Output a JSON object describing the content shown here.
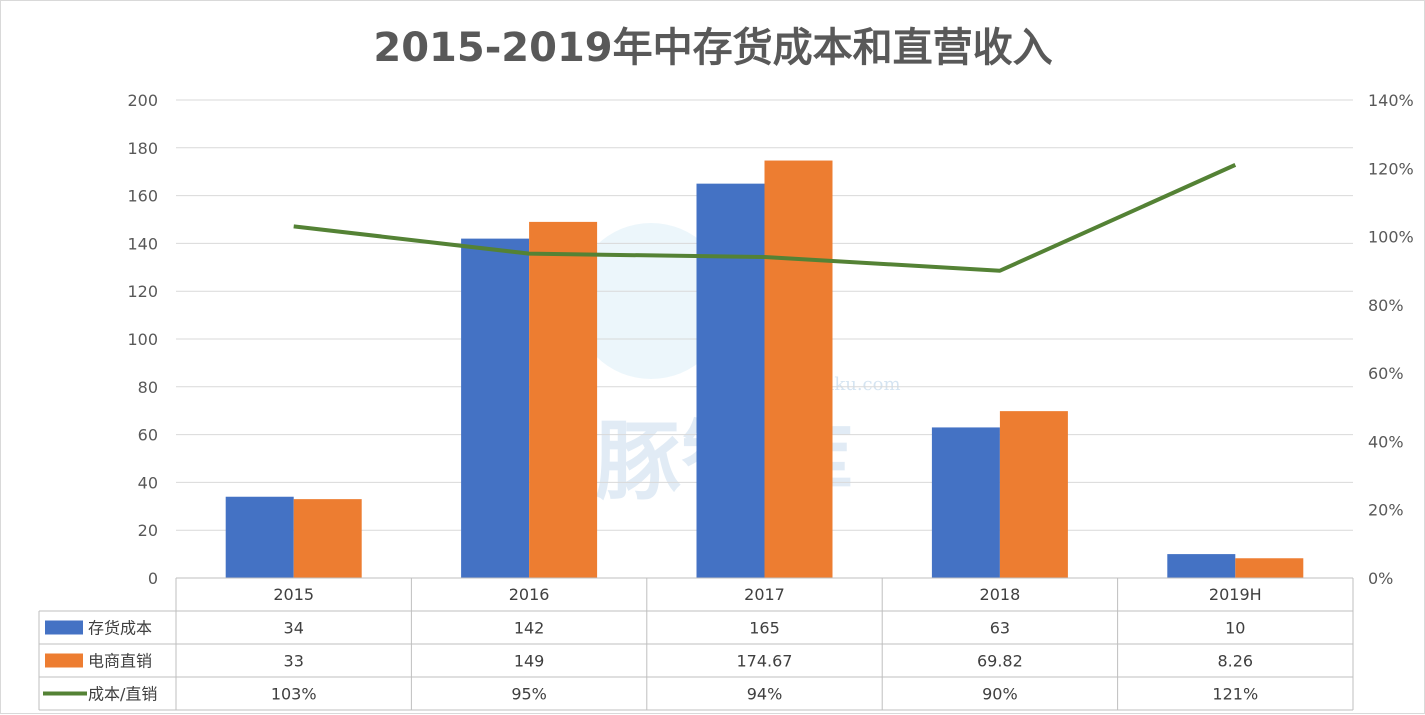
{
  "chart_data": {
    "type": "bar",
    "title": "2015-2019年中存货成本和直营收入",
    "categories": [
      "2015",
      "2016",
      "2017",
      "2018",
      "2019H"
    ],
    "series": [
      {
        "name": "存货成本",
        "kind": "bar",
        "axis": "left",
        "color": "#4472C4",
        "values": [
          34,
          142,
          165,
          63,
          10
        ],
        "table_labels": [
          "34",
          "142",
          "165",
          "63",
          "10"
        ]
      },
      {
        "name": "电商直销",
        "kind": "bar",
        "axis": "left",
        "color": "#ED7D31",
        "values": [
          33,
          149,
          174.67,
          69.82,
          8.26
        ],
        "table_labels": [
          "33",
          "149",
          "174.67",
          "69.82",
          "8.26"
        ]
      },
      {
        "name": "成本/直销",
        "kind": "line",
        "axis": "right",
        "color": "#548235",
        "values": [
          1.03,
          0.95,
          0.94,
          0.9,
          1.21
        ],
        "table_labels": [
          "103%",
          "95%",
          "94%",
          "90%",
          "121%"
        ]
      }
    ],
    "y_left": {
      "min": 0,
      "max": 200,
      "step": 20,
      "ticks": [
        "0",
        "20",
        "40",
        "60",
        "80",
        "100",
        "120",
        "140",
        "160",
        "180",
        "200"
      ]
    },
    "y_right": {
      "min": 0,
      "max": 1.4,
      "step": 0.2,
      "ticks": [
        "0%",
        "20%",
        "40%",
        "60%",
        "80%",
        "100%",
        "120%",
        "140%"
      ]
    },
    "grid": true,
    "legend": "data-table-below"
  },
  "watermark": {
    "text": "海豚智库",
    "url": "haitunzhiku.com"
  }
}
